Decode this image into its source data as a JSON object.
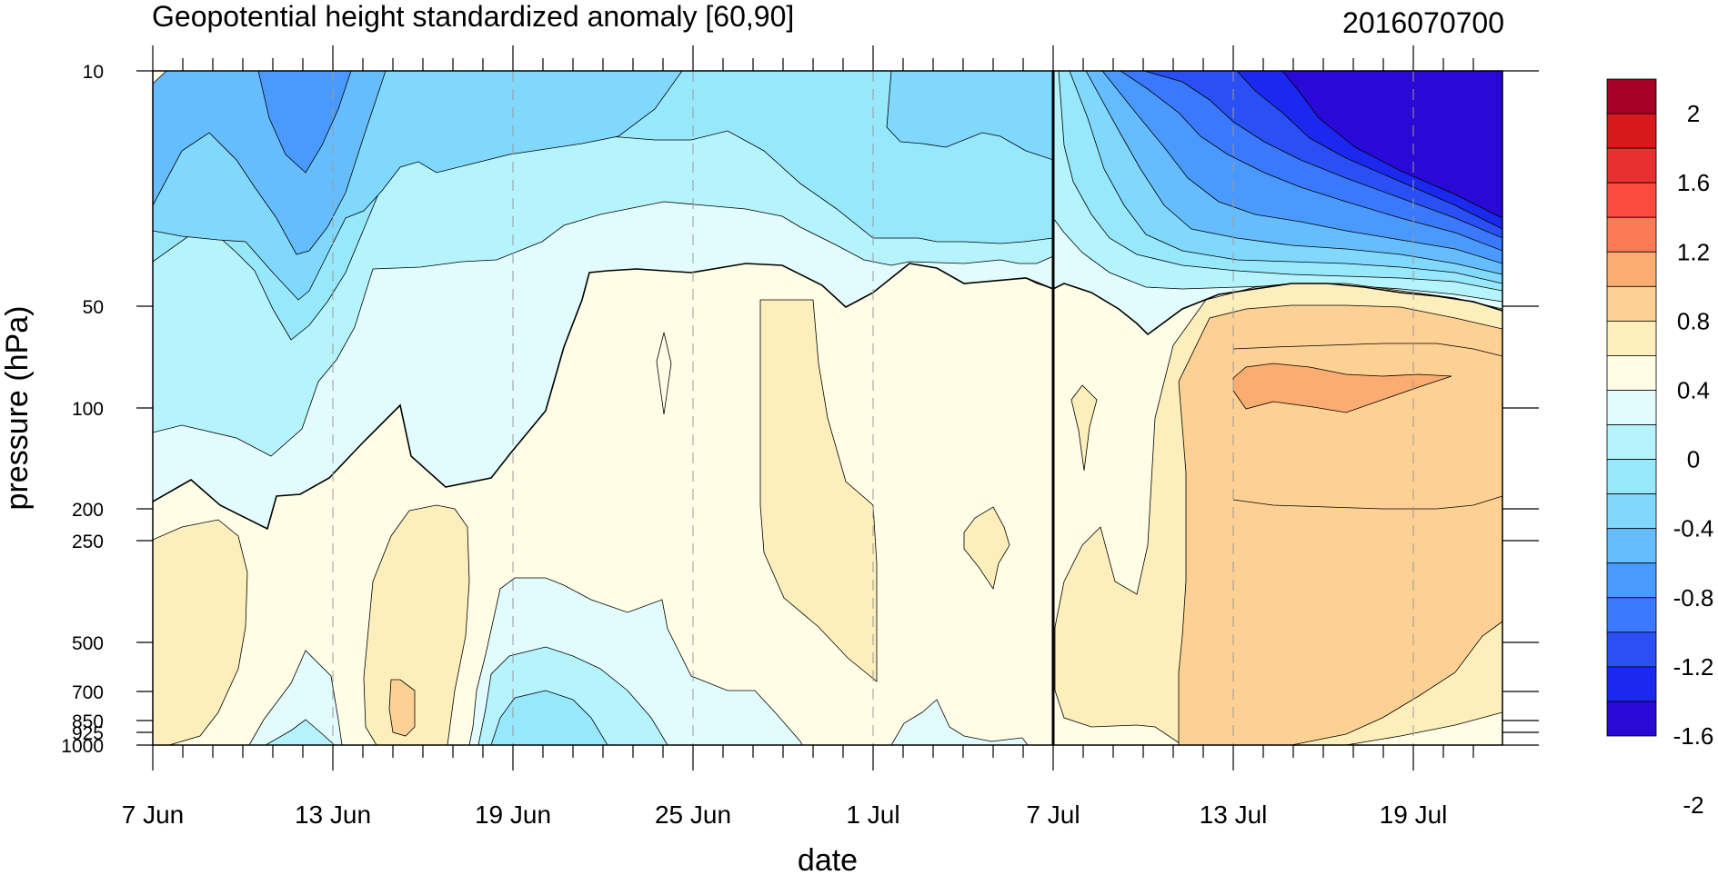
{
  "chart_data": {
    "type": "contour",
    "title": "Geopotential height standardized anomaly [60,90]",
    "date_stamp": "2016070700",
    "xlabel": "date",
    "ylabel": "pressure (hPa)",
    "x_ticks": [
      "7 Jun",
      "13 Jun",
      "19 Jun",
      "25 Jun",
      "1 Jul",
      "7 Jul",
      "13 Jul",
      "19 Jul"
    ],
    "x_range": [
      "7 Jun",
      "22 Jul"
    ],
    "y_ticks": [
      10,
      50,
      100,
      200,
      250,
      500,
      700,
      850,
      925,
      1000
    ],
    "y_scale": "log",
    "y_reversed": true,
    "colorbar_labels": [
      "2",
      "1.6",
      "1.2",
      "0.8",
      "0.4",
      "0",
      "-0.4",
      "-0.8",
      "-1.2",
      "-1.6",
      "-2"
    ],
    "colorbar_colors": [
      "#a50026",
      "#d7191c",
      "#e8302e",
      "#fb4a3e",
      "#f97a55",
      "#fbac70",
      "#fdd093",
      "#fdefbb",
      "#fffde6",
      "#e2fcfd",
      "#b5f4fc",
      "#98e8fc",
      "#80d8fd",
      "#66bdfd",
      "#4a9afd",
      "#3a78fd",
      "#2a50f5",
      "#1a28f0",
      "#2a08d6"
    ],
    "analysis_date_marker": "7 Jul",
    "dashed_gridlines": true
  }
}
